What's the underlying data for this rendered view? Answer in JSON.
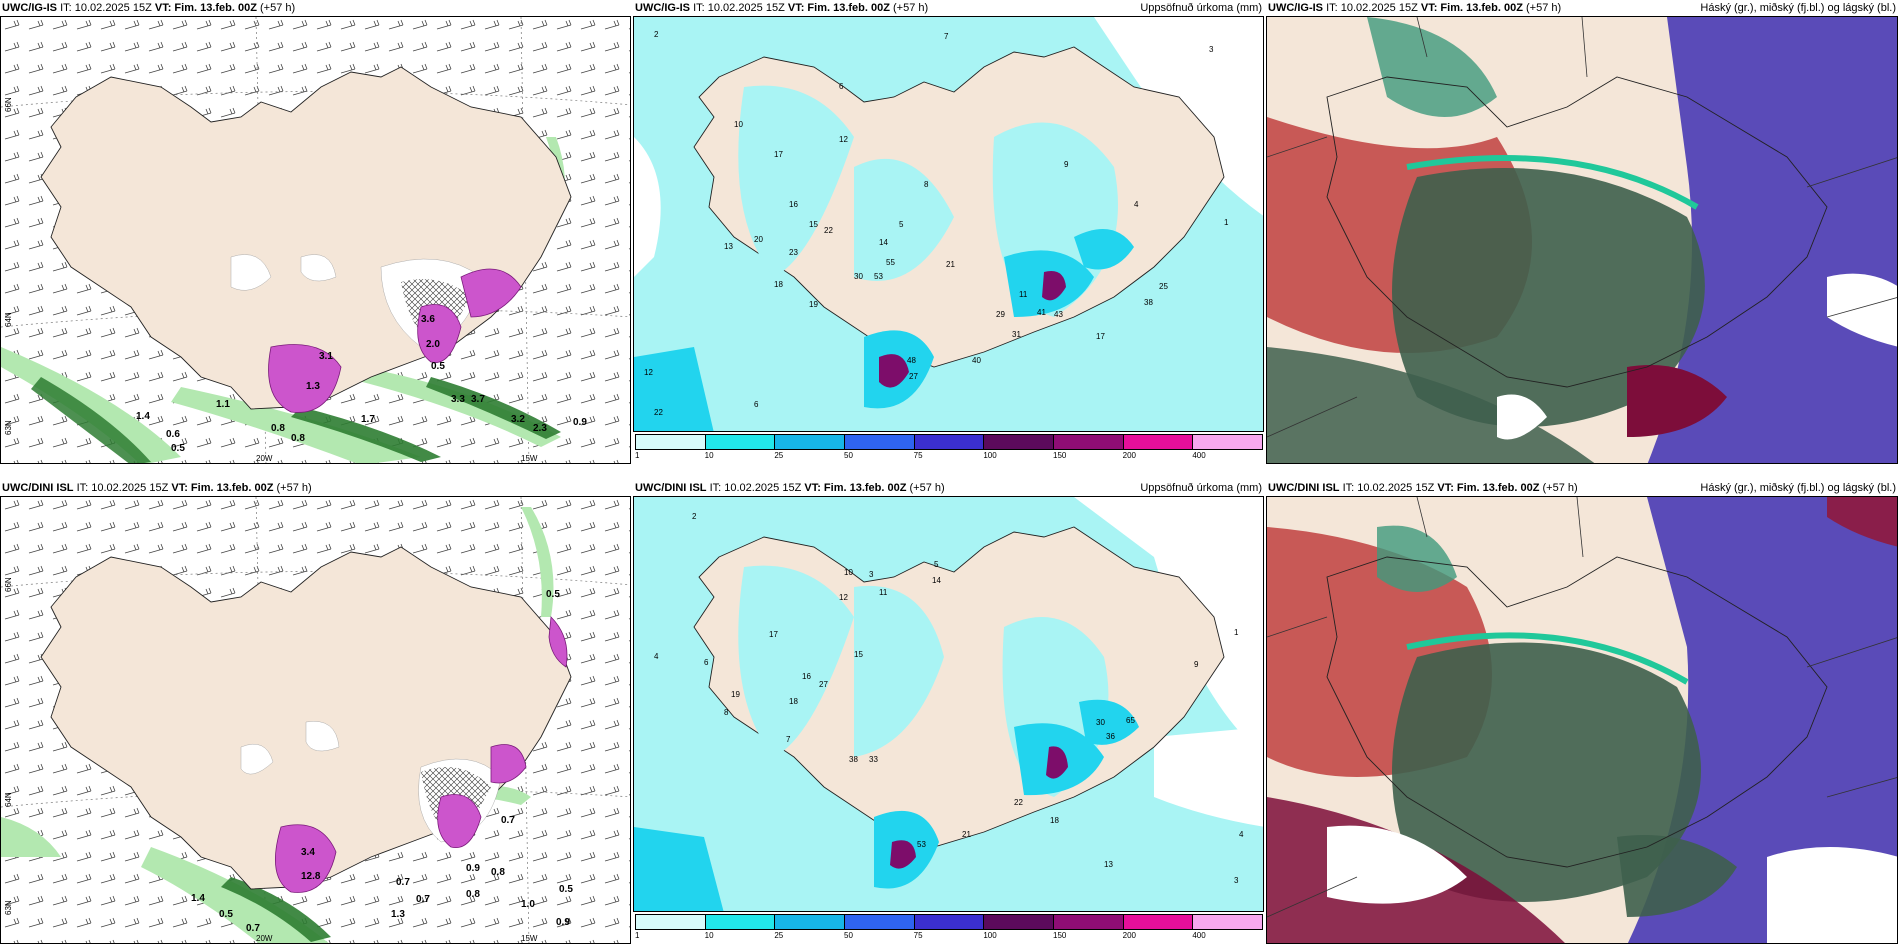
{
  "rows": [
    {
      "wind_panel": {
        "model": "UWC/IG-IS",
        "it": "IT: 10.02.2025 15Z",
        "vt_label": "VT:",
        "vt": "Fim. 13.feb. 00Z",
        "lead": "(+57 h)",
        "lat_labels": [
          "66N",
          "64N",
          "63N"
        ],
        "lon_labels": [
          "20W",
          "15W"
        ],
        "values": [
          "3.1",
          "3.6",
          "2.0",
          "1.3",
          "0.5",
          "0.6",
          "0.5",
          "0.9",
          "0.8",
          "0.8",
          "1.1",
          "1.4",
          "3.3",
          "3.7",
          "3.2",
          "2.3",
          "1.7"
        ]
      },
      "precip_panel": {
        "model": "UWC/IG-IS",
        "it": "IT: 10.02.2025 15Z",
        "vt_label": "VT:",
        "vt": "Fim. 13.feb. 00Z",
        "lead": "(+57 h)",
        "title_right": "Uppsöfnuð úrkoma (mm)",
        "values": [
          "2",
          "7",
          "3",
          "6",
          "5",
          "10",
          "12",
          "17",
          "16",
          "20",
          "23",
          "15",
          "22",
          "13",
          "19",
          "18",
          "30",
          "53",
          "48",
          "27",
          "40",
          "31",
          "29",
          "41",
          "43",
          "38",
          "25",
          "17",
          "11",
          "9",
          "8",
          "4",
          "1",
          "14",
          "55",
          "12",
          "22",
          "6",
          "21"
        ]
      },
      "cloud_panel": {
        "model": "UWC/IG-IS",
        "it": "IT: 10.02.2025 15Z",
        "vt_label": "VT:",
        "vt": "Fim. 13.feb. 00Z",
        "lead": "(+57 h)",
        "title_right": "Háský (gr.), miðský (fj.bl.) og lágský (bl.)"
      }
    },
    {
      "wind_panel": {
        "model": "UWC/DINI ISL",
        "it": "IT: 10.02.2025 15Z",
        "vt_label": "VT:",
        "vt": "Fim. 13.feb. 00Z",
        "lead": "(+57 h)",
        "lat_labels": [
          "66N",
          "64N",
          "63N"
        ],
        "lon_labels": [
          "20W",
          "15W"
        ],
        "values": [
          "0.5",
          "3.4",
          "12.8",
          "0.7",
          "0.9",
          "0.8",
          "1.4",
          "0.5",
          "0.7",
          "1.0",
          "0.9",
          "0.5",
          "0.7",
          "0.7",
          "0.8",
          "1.3"
        ]
      },
      "precip_panel": {
        "model": "UWC/DINI ISL",
        "it": "IT: 10.02.2025 15Z",
        "vt_label": "VT:",
        "vt": "Fim. 13.feb. 00Z",
        "lead": "(+57 h)",
        "title_right": "Uppsöfnuð úrkoma (mm)",
        "values": [
          "2",
          "3",
          "4",
          "5",
          "6",
          "7",
          "10",
          "11",
          "12",
          "14",
          "15",
          "17",
          "18",
          "19",
          "27",
          "16",
          "38",
          "33",
          "53",
          "22",
          "30",
          "36",
          "65",
          "21",
          "18",
          "1",
          "8",
          "9",
          "13",
          "4",
          "3"
        ]
      },
      "cloud_panel": {
        "model": "UWC/DINI ISL",
        "it": "IT: 10.02.2025 15Z",
        "vt_label": "VT:",
        "vt": "Fim. 13.feb. 00Z",
        "lead": "(+57 h)",
        "title_right": "Háský (gr.), miðský (fj.bl.) og lágský (bl.)"
      }
    }
  ],
  "precip_colorbar": {
    "ticks": [
      "1",
      "10",
      "25",
      "50",
      "75",
      "100",
      "150",
      "200",
      "400"
    ],
    "colors": [
      "#d7fbfb",
      "#22e7ea",
      "#17b6e8",
      "#2f64f0",
      "#3b2fd0",
      "#5c0a5c",
      "#8f0d75",
      "#e50f9a",
      "#f7a8ef"
    ]
  },
  "colors": {
    "land": "#f4e6d8",
    "sea": "#ffffff",
    "precip_light": "#a9f4f4",
    "precip_mid": "#22d4ee",
    "precip_high": "#7d0d6a",
    "wind_green": "#2e7d32",
    "wind_light_green": "#b3e8b0",
    "ice_purple": "#cc55cc",
    "cloud_high_gray": "#3e5f4d",
    "cloud_mid_blue": "#5a4bb8",
    "cloud_low_red": "#c04040",
    "cloud_teal": "#20c89a"
  }
}
